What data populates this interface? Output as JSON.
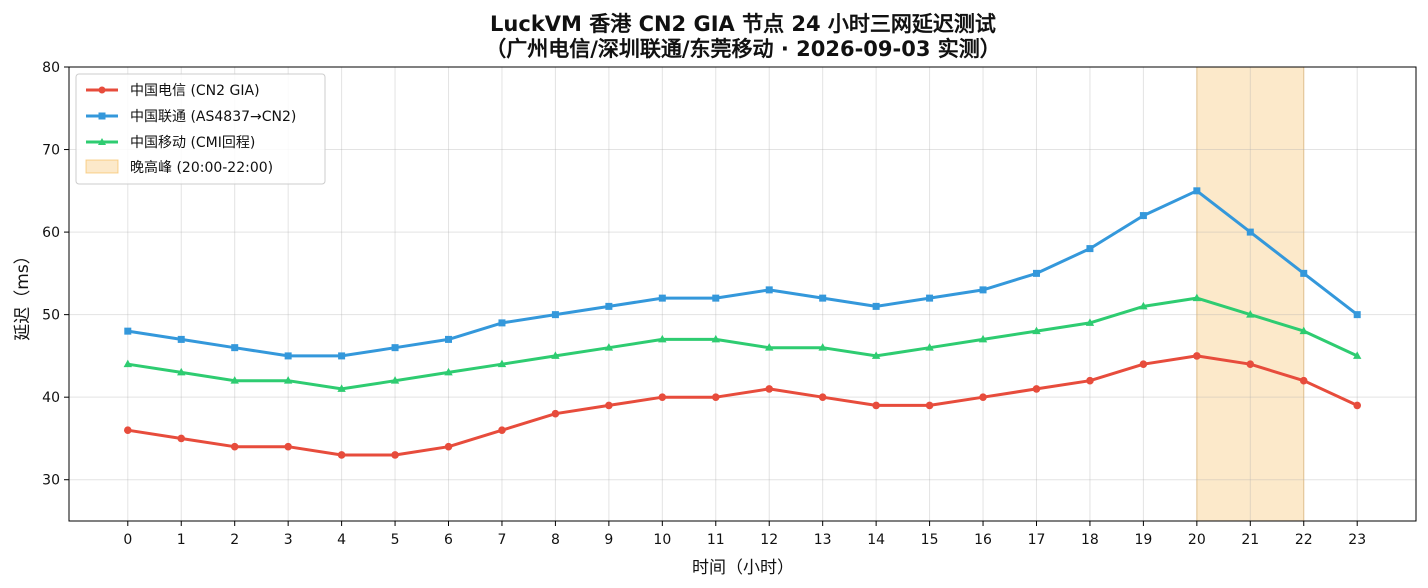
{
  "chart_data": {
    "type": "line",
    "title": "LuckVM 香港 CN2 GIA 节点 24 小时三网延迟测试",
    "subtitle": "（广州电信/深圳联通/东莞移动 · 2026-09-03 实测）",
    "xlabel": "时间（小时）",
    "ylabel": "延迟（ms）",
    "x": [
      0,
      1,
      2,
      3,
      4,
      5,
      6,
      7,
      8,
      9,
      10,
      11,
      12,
      13,
      14,
      15,
      16,
      17,
      18,
      19,
      20,
      21,
      22,
      23
    ],
    "xlim": [
      -1.1,
      24.1
    ],
    "ylim": [
      25,
      80
    ],
    "yticks": [
      30,
      40,
      50,
      60,
      70,
      80
    ],
    "grid": true,
    "legend_position": "top-left",
    "series": [
      {
        "name": "中国电信 (CN2 GIA)",
        "color": "#e74c3c",
        "marker": "circle",
        "values": [
          36,
          35,
          34,
          34,
          33,
          33,
          34,
          36,
          38,
          39,
          40,
          40,
          41,
          40,
          39,
          39,
          40,
          41,
          42,
          44,
          45,
          44,
          42,
          39
        ]
      },
      {
        "name": "中国联通 (AS4837→CN2)",
        "color": "#3498db",
        "marker": "square",
        "values": [
          48,
          47,
          46,
          45,
          45,
          46,
          47,
          49,
          50,
          51,
          52,
          52,
          53,
          52,
          51,
          52,
          53,
          55,
          58,
          62,
          65,
          60,
          55,
          50
        ]
      },
      {
        "name": "中国移动 (CMI回程)",
        "color": "#2ecc71",
        "marker": "triangle",
        "values": [
          44,
          43,
          42,
          42,
          41,
          42,
          43,
          44,
          45,
          46,
          47,
          47,
          46,
          46,
          45,
          46,
          47,
          48,
          49,
          51,
          52,
          50,
          48,
          45
        ]
      }
    ],
    "highlight": {
      "name": "晚高峰 (20:00-22:00)",
      "x_range": [
        20,
        22
      ],
      "color": "#f5b041"
    }
  }
}
